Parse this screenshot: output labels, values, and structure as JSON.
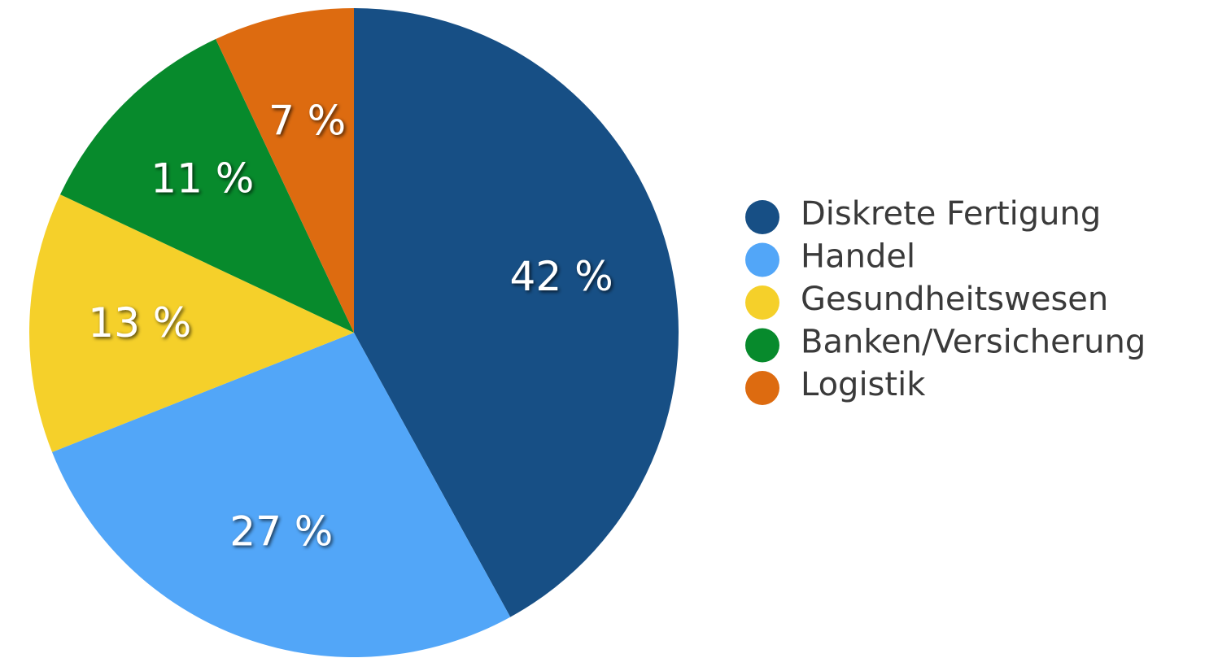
{
  "chart_data": {
    "type": "pie",
    "categories": [
      "Diskrete Fertigung",
      "Handel",
      "Gesundheitswesen",
      "Banken/Versicherung",
      "Logistik"
    ],
    "values": [
      42,
      27,
      13,
      11,
      7
    ],
    "value_labels": [
      "42 %",
      "27 %",
      "13 %",
      "11 %",
      "7 %"
    ],
    "colors": [
      "#174f85",
      "#52a6f8",
      "#f5d02a",
      "#078a2c",
      "#dd6b10"
    ],
    "legend": "right"
  }
}
